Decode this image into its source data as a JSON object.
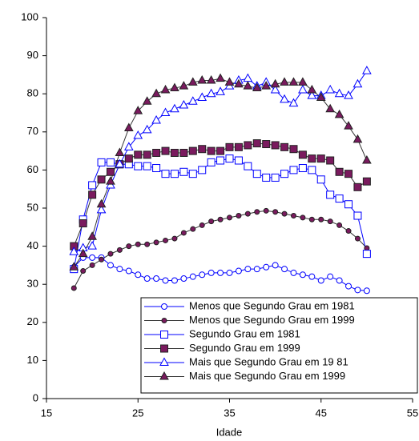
{
  "chart_data": {
    "type": "line",
    "x_label": "Idade",
    "x": [
      18,
      19,
      20,
      21,
      22,
      23,
      24,
      25,
      26,
      27,
      28,
      29,
      30,
      31,
      32,
      33,
      34,
      35,
      36,
      37,
      38,
      39,
      40,
      41,
      42,
      43,
      44,
      45,
      46,
      47,
      48,
      49,
      50
    ],
    "xlim": [
      15,
      55
    ],
    "xticks": [
      15,
      25,
      35,
      45,
      55
    ],
    "ylim": [
      0,
      100
    ],
    "yticks": [
      0,
      10,
      20,
      30,
      40,
      50,
      60,
      70,
      80,
      90,
      100
    ],
    "grid": false,
    "legend": "lower right",
    "series": [
      {
        "name": "Menos que Segundo Grau em 1981",
        "color": "#0000ff",
        "line_color": "#0000ff",
        "marker": "circle",
        "filled": false,
        "values": [
          34.5,
          37,
          37,
          37,
          35,
          34,
          33.5,
          32.5,
          31.5,
          31.5,
          31,
          31,
          31.5,
          32,
          32.5,
          33,
          33,
          33,
          33.5,
          34,
          34,
          34.5,
          35,
          34,
          33,
          32.5,
          32,
          31,
          32,
          31,
          29.5,
          28.5,
          28.3
        ]
      },
      {
        "name": "Menos que Segundo Grau em 1999",
        "color": "#7a1a5e",
        "line_color": "#333333",
        "marker": "circle",
        "filled": true,
        "values": [
          29,
          33.5,
          35,
          36.5,
          38,
          39,
          40,
          40.5,
          40.5,
          41,
          41.5,
          42,
          43.5,
          44.5,
          45.5,
          46.5,
          47,
          47.5,
          48,
          48.5,
          49,
          49.3,
          49,
          48.5,
          48,
          47.5,
          47,
          47,
          46.5,
          45.5,
          44,
          42,
          39.5
        ]
      },
      {
        "name": "Segundo Grau em 1981",
        "color": "#0000ff",
        "line_color": "#0000ff",
        "marker": "square",
        "filled": false,
        "values": [
          34,
          47,
          56,
          62,
          62,
          61.5,
          61.5,
          61,
          61,
          60.5,
          59,
          59,
          59.5,
          59,
          60,
          62,
          62.5,
          63,
          62.5,
          61,
          59,
          58,
          58,
          59,
          60,
          60.5,
          60,
          57.5,
          53.5,
          52.5,
          51,
          48,
          38
        ]
      },
      {
        "name": "Segundo Grau em  1999",
        "color": "#7a1a5e",
        "line_color": "#333333",
        "marker": "square",
        "filled": true,
        "values": [
          40,
          46,
          53.5,
          57.5,
          59.5,
          61.5,
          63,
          64,
          64,
          64.5,
          65,
          64.5,
          64.5,
          65,
          65.5,
          65,
          65,
          66,
          66,
          66.5,
          67,
          66.8,
          66.5,
          66,
          65.5,
          64,
          63,
          63,
          62.5,
          59.5,
          59,
          55.5,
          57
        ]
      },
      {
        "name": "Mais que Segundo Grau em 19 81",
        "color": "#0000ff",
        "line_color": "#0000ff",
        "marker": "triangle",
        "filled": false,
        "values": [
          38.5,
          39.5,
          40,
          49.5,
          56,
          61.5,
          66,
          69,
          70.5,
          73,
          75,
          76,
          77,
          78,
          79,
          80,
          80.5,
          82,
          83.5,
          84,
          82,
          83,
          81,
          78.5,
          77.5,
          81,
          79.5,
          79.5,
          81,
          80,
          79.5,
          82.5,
          86
        ]
      },
      {
        "name": "Mais que Segundo Grau em 1999",
        "color": "#7a1a5e",
        "line_color": "#333333",
        "marker": "triangle",
        "filled": true,
        "values": [
          34.5,
          38,
          42.5,
          51,
          57,
          64.5,
          71,
          75.5,
          78,
          80,
          81,
          81.5,
          82,
          83,
          83.5,
          83.5,
          84,
          83,
          82.5,
          82,
          81.5,
          82,
          82.5,
          83,
          83,
          83,
          81,
          79,
          76,
          74.5,
          71.5,
          68,
          62.5
        ]
      }
    ]
  }
}
